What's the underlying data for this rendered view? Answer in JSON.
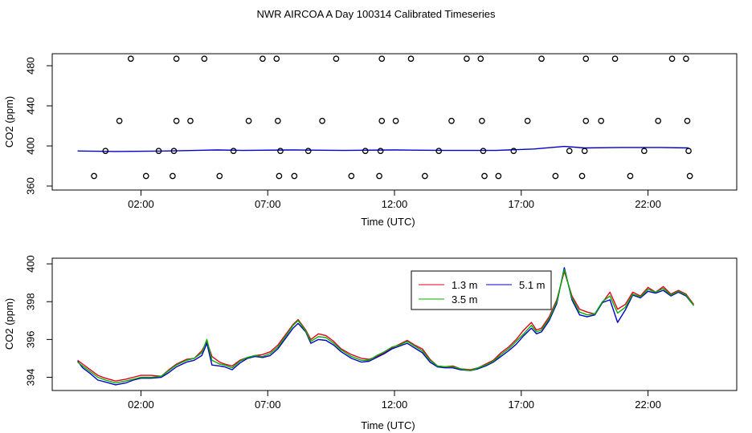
{
  "title": "NWR AIRCOA A  Day 100314  Calibrated Timeseries",
  "colors": {
    "red": "#e0001c",
    "green": "#00b000",
    "blue": "#0000c8",
    "axis": "#000000"
  },
  "chart_data": [
    {
      "type": "scatter+line",
      "xlabel": "Time (UTC)",
      "ylabel": "CO2 (ppm)",
      "xlim": [
        -1.5,
        25.5
      ],
      "ylim": [
        356,
        492
      ],
      "xticks": [
        2,
        7,
        12,
        17,
        22
      ],
      "xtick_labels": [
        "02:00",
        "07:00",
        "12:00",
        "17:00",
        "22:00"
      ],
      "yticks": [
        360,
        400,
        440,
        480
      ],
      "ytick_labels": [
        "360",
        "400",
        "440",
        "480"
      ],
      "calibration_points": [
        {
          "x": 0.15,
          "y": 370
        },
        {
          "x": 0.6,
          "y": 395
        },
        {
          "x": 1.15,
          "y": 425
        },
        {
          "x": 1.6,
          "y": 487
        },
        {
          "x": 2.2,
          "y": 370
        },
        {
          "x": 2.7,
          "y": 395
        },
        {
          "x": 3.25,
          "y": 370
        },
        {
          "x": 3.3,
          "y": 395
        },
        {
          "x": 3.4,
          "y": 425
        },
        {
          "x": 3.4,
          "y": 487
        },
        {
          "x": 3.95,
          "y": 425
        },
        {
          "x": 4.5,
          "y": 487
        },
        {
          "x": 5.1,
          "y": 370
        },
        {
          "x": 5.65,
          "y": 395
        },
        {
          "x": 6.25,
          "y": 425
        },
        {
          "x": 6.8,
          "y": 487
        },
        {
          "x": 7.35,
          "y": 487
        },
        {
          "x": 7.4,
          "y": 425
        },
        {
          "x": 7.45,
          "y": 370
        },
        {
          "x": 7.5,
          "y": 395
        },
        {
          "x": 8.05,
          "y": 370
        },
        {
          "x": 8.6,
          "y": 395
        },
        {
          "x": 9.15,
          "y": 425
        },
        {
          "x": 9.7,
          "y": 487
        },
        {
          "x": 10.3,
          "y": 370
        },
        {
          "x": 10.85,
          "y": 395
        },
        {
          "x": 11.4,
          "y": 370
        },
        {
          "x": 11.45,
          "y": 395
        },
        {
          "x": 11.5,
          "y": 425
        },
        {
          "x": 11.5,
          "y": 487
        },
        {
          "x": 12.05,
          "y": 425
        },
        {
          "x": 12.65,
          "y": 487
        },
        {
          "x": 13.2,
          "y": 370
        },
        {
          "x": 13.75,
          "y": 395
        },
        {
          "x": 14.25,
          "y": 425
        },
        {
          "x": 14.85,
          "y": 487
        },
        {
          "x": 15.4,
          "y": 487
        },
        {
          "x": 15.45,
          "y": 425
        },
        {
          "x": 15.5,
          "y": 395
        },
        {
          "x": 15.55,
          "y": 370
        },
        {
          "x": 16.1,
          "y": 370
        },
        {
          "x": 16.7,
          "y": 395
        },
        {
          "x": 17.25,
          "y": 425
        },
        {
          "x": 17.8,
          "y": 487
        },
        {
          "x": 18.35,
          "y": 370
        },
        {
          "x": 18.9,
          "y": 395
        },
        {
          "x": 19.4,
          "y": 370
        },
        {
          "x": 19.5,
          "y": 395
        },
        {
          "x": 19.55,
          "y": 425
        },
        {
          "x": 19.55,
          "y": 487
        },
        {
          "x": 20.15,
          "y": 425
        },
        {
          "x": 20.7,
          "y": 487
        },
        {
          "x": 21.3,
          "y": 370
        },
        {
          "x": 21.85,
          "y": 395
        },
        {
          "x": 22.4,
          "y": 425
        },
        {
          "x": 22.95,
          "y": 487
        },
        {
          "x": 23.5,
          "y": 487
        },
        {
          "x": 23.55,
          "y": 425
        },
        {
          "x": 23.6,
          "y": 395
        },
        {
          "x": 23.65,
          "y": 370
        }
      ],
      "series": [
        {
          "name": "5.1 m",
          "color": "#0000c8",
          "x": [
            -0.5,
            1,
            3,
            5,
            6,
            8,
            10,
            12,
            14,
            16,
            17.5,
            18.7,
            19.5,
            21,
            22.5,
            23.6
          ],
          "y": [
            395,
            394.5,
            395,
            396,
            395.5,
            396,
            395.5,
            396,
            395.5,
            395.5,
            397,
            399.5,
            398,
            398.5,
            398.5,
            398
          ]
        }
      ]
    },
    {
      "type": "line",
      "xlabel": "Time (UTC)",
      "ylabel": "CO2 (ppm)",
      "xlim": [
        -1.5,
        25.5
      ],
      "ylim": [
        393.3,
        400.3
      ],
      "xticks": [
        2,
        7,
        12,
        17,
        22
      ],
      "xtick_labels": [
        "02:00",
        "07:00",
        "12:00",
        "17:00",
        "22:00"
      ],
      "yticks": [
        394,
        396,
        398,
        400
      ],
      "ytick_labels": [
        "394",
        "396",
        "398",
        "400"
      ],
      "legend": {
        "placement": "top-right",
        "entries": [
          "1.3 m",
          "5.1 m",
          "3.5 m"
        ]
      },
      "series": [
        {
          "name": "1.3 m",
          "color": "#e0001c",
          "x": [
            -0.5,
            -0.3,
            0,
            0.3,
            0.6,
            1,
            1.4,
            1.7,
            2,
            2.4,
            2.8,
            3.1,
            3.4,
            3.8,
            4.1,
            4.4,
            4.6,
            4.8,
            5.1,
            5.3,
            5.6,
            5.9,
            6.2,
            6.5,
            6.8,
            7.1,
            7.4,
            7.7,
            8,
            8.2,
            8.5,
            8.7,
            9,
            9.3,
            9.6,
            9.9,
            10.3,
            10.7,
            11,
            11.3,
            11.6,
            11.9,
            12.2,
            12.5,
            12.8,
            13.1,
            13.4,
            13.7,
            14,
            14.3,
            14.6,
            15,
            15.3,
            15.6,
            15.9,
            16.2,
            16.5,
            16.8,
            17.1,
            17.4,
            17.6,
            17.8,
            18.1,
            18.4,
            18.7,
            19,
            19.3,
            19.6,
            19.9,
            20.2,
            20.5,
            20.8,
            21.1,
            21.4,
            21.7,
            22,
            22.3,
            22.6,
            22.9,
            23.2,
            23.5,
            23.8
          ],
          "y": [
            394.9,
            394.7,
            394.4,
            394.1,
            393.95,
            393.8,
            393.9,
            394,
            394.1,
            394.1,
            394.05,
            394.4,
            394.7,
            394.95,
            395,
            395.4,
            395.9,
            395.1,
            394.8,
            394.7,
            394.6,
            394.9,
            395.05,
            395.15,
            395.2,
            395.35,
            395.7,
            396.25,
            396.8,
            397.05,
            396.5,
            396,
            396.3,
            396.2,
            395.9,
            395.5,
            395.2,
            395.0,
            394.95,
            395.1,
            395.3,
            395.55,
            395.75,
            395.95,
            395.7,
            395.5,
            394.95,
            394.6,
            394.55,
            394.6,
            394.45,
            394.4,
            394.5,
            394.7,
            394.9,
            395.3,
            395.6,
            396.0,
            396.5,
            396.9,
            396.5,
            396.6,
            397.2,
            398.1,
            399.6,
            398.3,
            397.6,
            397.45,
            397.35,
            397.95,
            398.5,
            397.6,
            397.85,
            398.5,
            398.3,
            398.75,
            398.5,
            398.8,
            398.4,
            398.6,
            398.4,
            397.85
          ]
        },
        {
          "name": "5.1 m",
          "color": "#0000c8",
          "x": [
            -0.5,
            -0.3,
            0,
            0.3,
            0.6,
            1,
            1.4,
            1.7,
            2,
            2.4,
            2.8,
            3.1,
            3.4,
            3.8,
            4.1,
            4.4,
            4.6,
            4.8,
            5.1,
            5.3,
            5.6,
            5.9,
            6.2,
            6.5,
            6.8,
            7.1,
            7.4,
            7.7,
            8,
            8.2,
            8.5,
            8.7,
            9,
            9.3,
            9.6,
            9.9,
            10.3,
            10.7,
            11,
            11.3,
            11.6,
            11.9,
            12.2,
            12.5,
            12.8,
            13.1,
            13.4,
            13.7,
            14,
            14.3,
            14.6,
            15,
            15.3,
            15.6,
            15.9,
            16.2,
            16.5,
            16.8,
            17.1,
            17.4,
            17.6,
            17.8,
            18.1,
            18.4,
            18.7,
            19,
            19.3,
            19.6,
            19.9,
            20.2,
            20.5,
            20.8,
            21.1,
            21.4,
            21.7,
            22,
            22.3,
            22.6,
            22.9,
            23.2,
            23.5,
            23.8
          ],
          "y": [
            394.85,
            394.5,
            394.2,
            393.85,
            393.75,
            393.6,
            393.7,
            393.85,
            393.95,
            393.95,
            394.0,
            394.25,
            394.55,
            394.8,
            394.9,
            395.15,
            395.8,
            394.65,
            394.6,
            394.55,
            394.4,
            394.75,
            395.0,
            395.1,
            395.05,
            395.15,
            395.5,
            396.05,
            396.6,
            396.85,
            396.4,
            395.8,
            396.0,
            395.95,
            395.7,
            395.35,
            395.0,
            394.8,
            394.85,
            395.05,
            395.25,
            395.5,
            395.65,
            395.8,
            395.55,
            395.3,
            394.8,
            394.55,
            394.5,
            394.5,
            394.4,
            394.35,
            394.45,
            394.6,
            394.8,
            395.1,
            395.4,
            395.75,
            396.2,
            396.6,
            396.3,
            396.4,
            397.0,
            397.9,
            399.8,
            398.1,
            397.3,
            397.2,
            397.3,
            397.95,
            398.1,
            396.9,
            397.55,
            398.35,
            398.2,
            398.55,
            398.45,
            398.6,
            398.3,
            398.5,
            398.3,
            397.8
          ]
        },
        {
          "name": "3.5 m",
          "color": "#00b000",
          "x": [
            -0.5,
            -0.3,
            0,
            0.3,
            0.6,
            1,
            1.4,
            1.7,
            2,
            2.4,
            2.8,
            3.1,
            3.4,
            3.8,
            4.1,
            4.4,
            4.6,
            4.8,
            5.1,
            5.3,
            5.6,
            5.9,
            6.2,
            6.5,
            6.8,
            7.1,
            7.4,
            7.7,
            8,
            8.2,
            8.5,
            8.7,
            9,
            9.3,
            9.6,
            9.9,
            10.3,
            10.7,
            11,
            11.3,
            11.6,
            11.9,
            12.2,
            12.5,
            12.8,
            13.1,
            13.4,
            13.7,
            14,
            14.3,
            14.6,
            15,
            15.3,
            15.6,
            15.9,
            16.2,
            16.5,
            16.8,
            17.1,
            17.4,
            17.6,
            17.8,
            18.1,
            18.4,
            18.7,
            19,
            19.3,
            19.6,
            19.9,
            20.2,
            20.5,
            20.8,
            21.1,
            21.4,
            21.7,
            22,
            22.3,
            22.6,
            22.9,
            23.2,
            23.5,
            23.8
          ],
          "y": [
            394.8,
            394.6,
            394.3,
            394.0,
            393.85,
            393.7,
            393.8,
            393.9,
            394.0,
            394.0,
            394.05,
            394.35,
            394.65,
            394.9,
            395.0,
            395.3,
            396.0,
            394.9,
            394.7,
            394.65,
            394.5,
            394.85,
            395.05,
            395.15,
            395.1,
            395.25,
            395.6,
            396.15,
            396.75,
            397.0,
            396.45,
            395.9,
            396.15,
            396.1,
            395.8,
            395.45,
            395.1,
            394.9,
            394.9,
            395.15,
            395.35,
            395.6,
            395.7,
            395.9,
            395.65,
            395.4,
            394.9,
            394.6,
            394.55,
            394.55,
            394.45,
            394.35,
            394.5,
            394.65,
            394.85,
            395.2,
            395.5,
            395.9,
            396.3,
            396.75,
            396.4,
            396.5,
            397.1,
            398.0,
            399.7,
            398.2,
            397.45,
            397.3,
            397.35,
            398.0,
            398.3,
            397.4,
            397.7,
            398.4,
            398.25,
            398.65,
            398.5,
            398.7,
            398.35,
            398.55,
            398.35,
            397.8
          ]
        }
      ]
    }
  ]
}
